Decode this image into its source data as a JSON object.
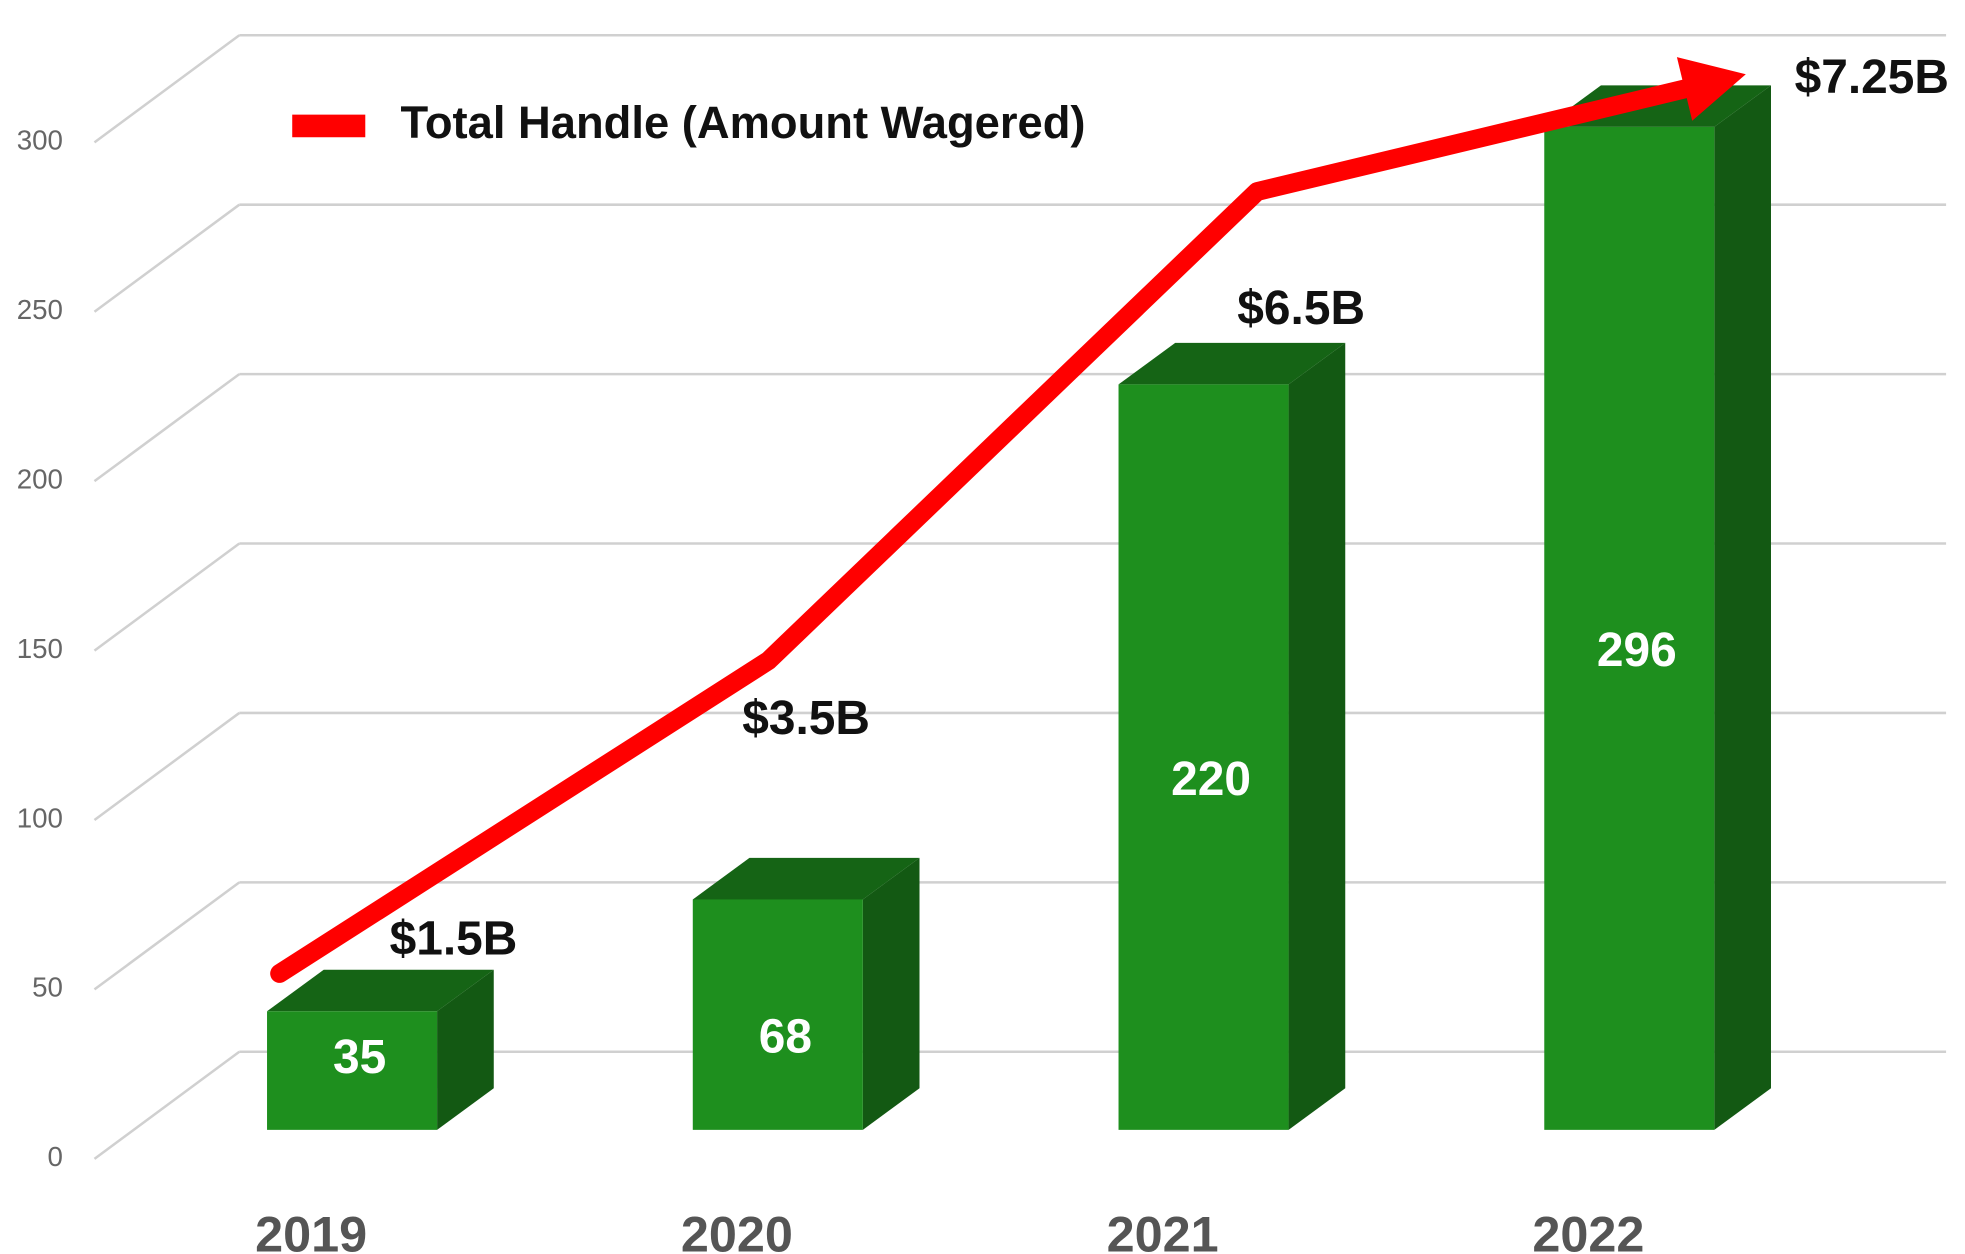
{
  "chart_data": {
    "type": "bar3d",
    "categories": [
      "2019",
      "2020",
      "2021",
      "2022"
    ],
    "values": [
      35,
      68,
      220,
      296
    ],
    "color": "#1e8f1e",
    "ylim": [
      0,
      300
    ],
    "yticks": [
      0,
      50,
      100,
      150,
      200,
      250,
      300
    ],
    "grid": true,
    "line": {
      "name": "Total Handle (Amount Wagered)",
      "color": "#ff0000",
      "axis": "y2",
      "values": [
        1.5,
        3.5,
        6.5,
        7.25
      ],
      "value_labels": [
        "$1.5B",
        "$3.5B",
        "$6.5B",
        "$7.25B"
      ]
    },
    "y2lim": [
      0.5,
      7
    ]
  }
}
